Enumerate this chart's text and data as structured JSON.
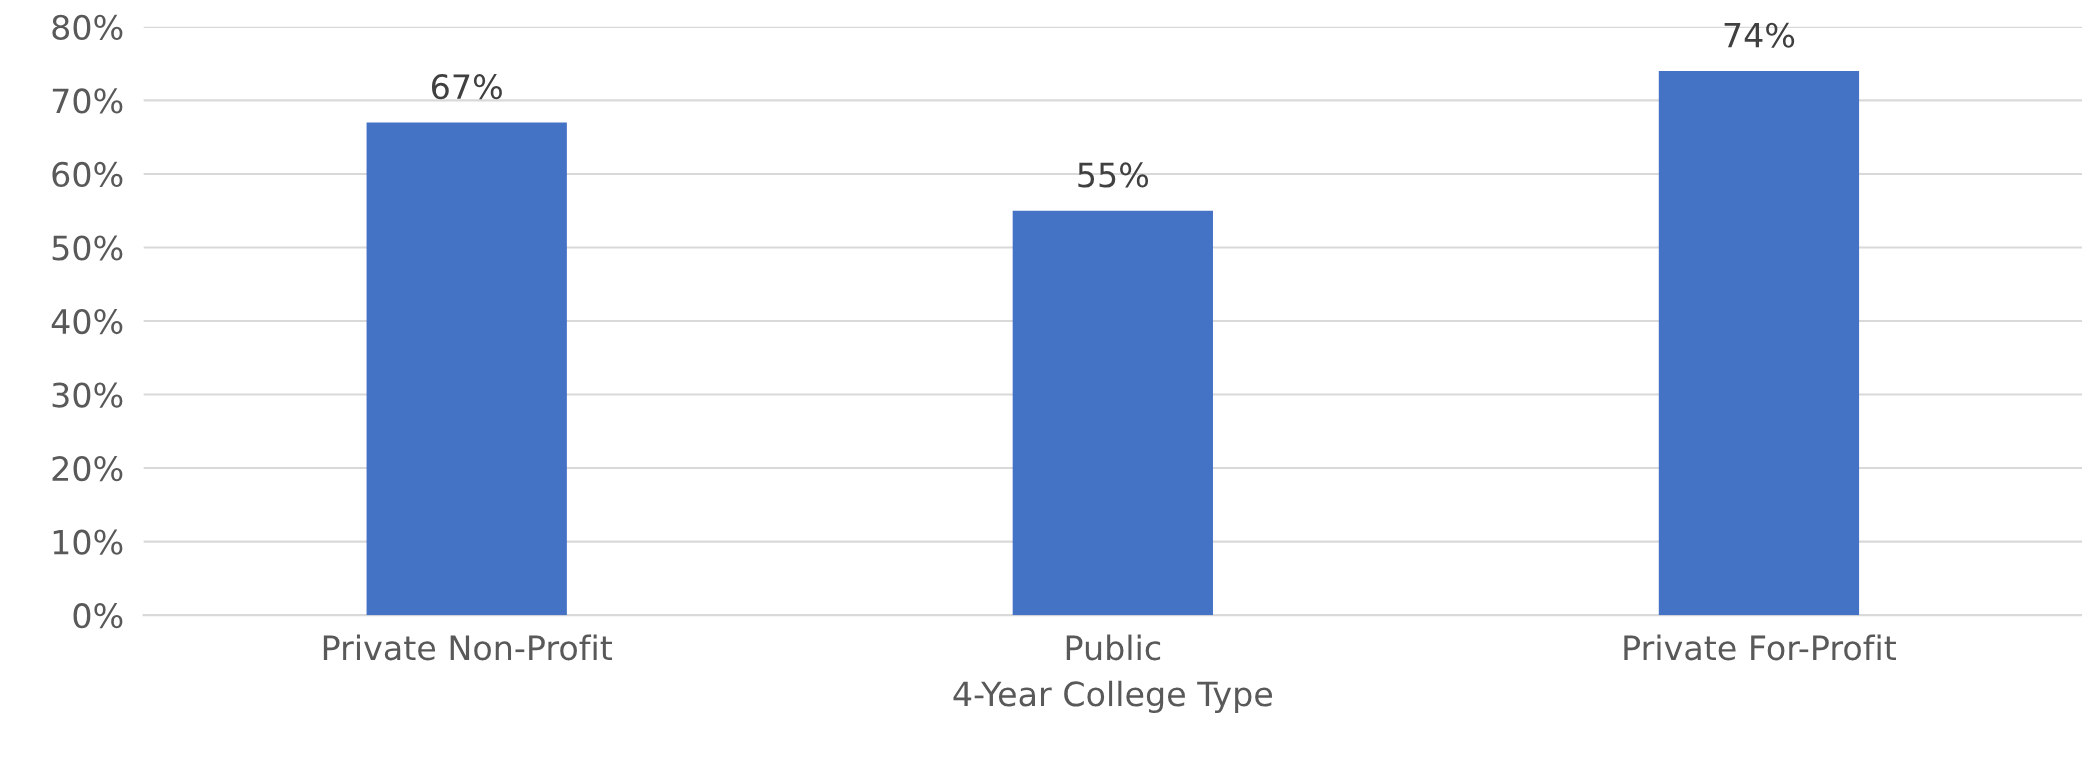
{
  "chart_data": {
    "type": "bar",
    "xlabel": "4-Year College Type",
    "categories": [
      "Private Non-Profit",
      "Public",
      "Private For-Profit"
    ],
    "values": [
      67,
      55,
      74
    ],
    "color": "#4472c4",
    "value_labels": [
      "67%",
      "55%",
      "74%"
    ],
    "ylim": [
      0,
      80
    ],
    "yticks": [
      {
        "value": 0,
        "label": "0%"
      },
      {
        "value": 10,
        "label": "10%"
      },
      {
        "value": 20,
        "label": "20%"
      },
      {
        "value": 30,
        "label": "30%"
      },
      {
        "value": 40,
        "label": "40%"
      },
      {
        "value": 50,
        "label": "50%"
      },
      {
        "value": 60,
        "label": "60%"
      },
      {
        "value": 70,
        "label": "70%"
      },
      {
        "value": 80,
        "label": "80%"
      }
    ],
    "grid": "y",
    "legend": false
  }
}
